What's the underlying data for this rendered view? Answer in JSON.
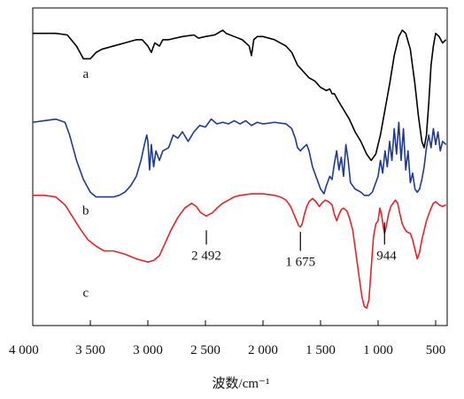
{
  "chart_data": {
    "type": "line",
    "title": "",
    "xlabel": "波数/cm⁻¹",
    "ylabel": "",
    "x_reversed": true,
    "xlim": [
      4000,
      400
    ],
    "x_ticks": [
      4000,
      3500,
      3000,
      2500,
      2000,
      1500,
      1000,
      500
    ],
    "x_tick_labels": [
      "4 000",
      "3 500",
      "3 000",
      "2 500",
      "2 000",
      "1 500",
      "1 000",
      "500"
    ],
    "ylim": [
      0,
      100
    ],
    "y_ticks_shown": false,
    "grid": false,
    "series": [
      {
        "name": "a",
        "color": "#000000",
        "points": [
          [
            4000,
            92
          ],
          [
            3800,
            92
          ],
          [
            3700,
            91.5
          ],
          [
            3620,
            88
          ],
          [
            3560,
            84
          ],
          [
            3500,
            84
          ],
          [
            3450,
            86
          ],
          [
            3400,
            87
          ],
          [
            3300,
            88
          ],
          [
            3200,
            89
          ],
          [
            3100,
            90
          ],
          [
            3050,
            90
          ],
          [
            3000,
            88
          ],
          [
            2970,
            86
          ],
          [
            2940,
            89
          ],
          [
            2900,
            88
          ],
          [
            2870,
            90
          ],
          [
            2820,
            90
          ],
          [
            2700,
            91
          ],
          [
            2600,
            91.5
          ],
          [
            2560,
            90.5
          ],
          [
            2500,
            91
          ],
          [
            2420,
            91.5
          ],
          [
            2350,
            93
          ],
          [
            2320,
            92
          ],
          [
            2250,
            91
          ],
          [
            2180,
            90
          ],
          [
            2120,
            88
          ],
          [
            2100,
            85
          ],
          [
            2080,
            90
          ],
          [
            2050,
            91
          ],
          [
            2000,
            91
          ],
          [
            1900,
            90
          ],
          [
            1800,
            88
          ],
          [
            1750,
            86
          ],
          [
            1700,
            82
          ],
          [
            1650,
            80
          ],
          [
            1600,
            78
          ],
          [
            1550,
            77
          ],
          [
            1500,
            75
          ],
          [
            1450,
            74
          ],
          [
            1420,
            74.5
          ],
          [
            1400,
            73
          ],
          [
            1380,
            73
          ],
          [
            1350,
            71
          ],
          [
            1300,
            68
          ],
          [
            1250,
            65
          ],
          [
            1200,
            61
          ],
          [
            1150,
            58
          ],
          [
            1100,
            54
          ],
          [
            1060,
            52
          ],
          [
            1020,
            54
          ],
          [
            980,
            60
          ],
          [
            940,
            68
          ],
          [
            900,
            76
          ],
          [
            860,
            85
          ],
          [
            820,
            91
          ],
          [
            790,
            93
          ],
          [
            760,
            92
          ],
          [
            720,
            87
          ],
          [
            680,
            76
          ],
          [
            650,
            66
          ],
          [
            620,
            58
          ],
          [
            600,
            56
          ],
          [
            580,
            60
          ],
          [
            560,
            70
          ],
          [
            540,
            82
          ],
          [
            520,
            88
          ],
          [
            500,
            92
          ],
          [
            470,
            91
          ],
          [
            440,
            89
          ],
          [
            410,
            90
          ]
        ]
      },
      {
        "name": "b",
        "color": "#1f3a93",
        "points": [
          [
            4000,
            64
          ],
          [
            3900,
            64.5
          ],
          [
            3800,
            65
          ],
          [
            3720,
            64
          ],
          [
            3680,
            60
          ],
          [
            3620,
            52
          ],
          [
            3560,
            46
          ],
          [
            3500,
            42
          ],
          [
            3450,
            40.5
          ],
          [
            3400,
            40.5
          ],
          [
            3300,
            40.5
          ],
          [
            3250,
            41
          ],
          [
            3200,
            42
          ],
          [
            3150,
            44
          ],
          [
            3100,
            47
          ],
          [
            3060,
            52
          ],
          [
            3030,
            57
          ],
          [
            3010,
            60
          ],
          [
            3000,
            58
          ],
          [
            2985,
            49
          ],
          [
            2970,
            57
          ],
          [
            2950,
            50
          ],
          [
            2930,
            55
          ],
          [
            2900,
            52
          ],
          [
            2870,
            55
          ],
          [
            2820,
            56
          ],
          [
            2780,
            60
          ],
          [
            2740,
            59
          ],
          [
            2700,
            61
          ],
          [
            2650,
            58
          ],
          [
            2600,
            61
          ],
          [
            2550,
            63
          ],
          [
            2500,
            62.5
          ],
          [
            2450,
            65
          ],
          [
            2400,
            63.5
          ],
          [
            2350,
            64
          ],
          [
            2300,
            63.5
          ],
          [
            2250,
            64.5
          ],
          [
            2200,
            63.5
          ],
          [
            2150,
            64.5
          ],
          [
            2100,
            63
          ],
          [
            2050,
            64
          ],
          [
            2000,
            63.5
          ],
          [
            1900,
            64
          ],
          [
            1800,
            63.5
          ],
          [
            1750,
            62
          ],
          [
            1720,
            59
          ],
          [
            1700,
            56
          ],
          [
            1675,
            55
          ],
          [
            1650,
            56
          ],
          [
            1620,
            57
          ],
          [
            1600,
            55
          ],
          [
            1570,
            50
          ],
          [
            1540,
            47
          ],
          [
            1500,
            43
          ],
          [
            1470,
            41.5
          ],
          [
            1450,
            44
          ],
          [
            1420,
            47
          ],
          [
            1400,
            46
          ],
          [
            1380,
            51
          ],
          [
            1360,
            55
          ],
          [
            1340,
            49
          ],
          [
            1320,
            53
          ],
          [
            1300,
            47
          ],
          [
            1280,
            57
          ],
          [
            1260,
            52
          ],
          [
            1240,
            45
          ],
          [
            1200,
            43
          ],
          [
            1150,
            42
          ],
          [
            1120,
            41
          ],
          [
            1080,
            41
          ],
          [
            1050,
            42
          ],
          [
            1030,
            44
          ],
          [
            1000,
            47
          ],
          [
            980,
            52
          ],
          [
            960,
            48
          ],
          [
            940,
            55
          ],
          [
            920,
            50
          ],
          [
            900,
            58
          ],
          [
            880,
            52
          ],
          [
            860,
            62
          ],
          [
            840,
            54
          ],
          [
            820,
            64
          ],
          [
            800,
            52
          ],
          [
            780,
            62
          ],
          [
            760,
            49
          ],
          [
            740,
            55
          ],
          [
            720,
            45
          ],
          [
            700,
            48
          ],
          [
            680,
            43
          ],
          [
            660,
            42
          ],
          [
            640,
            43
          ],
          [
            620,
            46
          ],
          [
            600,
            50
          ],
          [
            580,
            56
          ],
          [
            560,
            60
          ],
          [
            540,
            56
          ],
          [
            520,
            62
          ],
          [
            500,
            57
          ],
          [
            480,
            61
          ],
          [
            460,
            55
          ],
          [
            440,
            58
          ],
          [
            410,
            57
          ]
        ]
      },
      {
        "name": "c",
        "color": "#e1252b",
        "points": [
          [
            4000,
            41
          ],
          [
            3900,
            41
          ],
          [
            3800,
            40.5
          ],
          [
            3720,
            38
          ],
          [
            3650,
            34
          ],
          [
            3580,
            30
          ],
          [
            3520,
            27
          ],
          [
            3450,
            25
          ],
          [
            3380,
            23.5
          ],
          [
            3300,
            23.5
          ],
          [
            3200,
            22.5
          ],
          [
            3100,
            21
          ],
          [
            3000,
            20
          ],
          [
            2950,
            20.5
          ],
          [
            2900,
            22
          ],
          [
            2850,
            26
          ],
          [
            2800,
            30
          ],
          [
            2740,
            34
          ],
          [
            2680,
            37
          ],
          [
            2620,
            38.5
          ],
          [
            2580,
            37.5
          ],
          [
            2540,
            35.5
          ],
          [
            2492,
            34.5
          ],
          [
            2440,
            35.5
          ],
          [
            2400,
            37
          ],
          [
            2350,
            38.5
          ],
          [
            2300,
            39.5
          ],
          [
            2250,
            40.5
          ],
          [
            2200,
            41
          ],
          [
            2100,
            41.5
          ],
          [
            2000,
            41.5
          ],
          [
            1900,
            41
          ],
          [
            1850,
            40.5
          ],
          [
            1800,
            39.5
          ],
          [
            1760,
            37.5
          ],
          [
            1720,
            34
          ],
          [
            1690,
            31.5
          ],
          [
            1675,
            31
          ],
          [
            1660,
            32
          ],
          [
            1640,
            35
          ],
          [
            1620,
            37.5
          ],
          [
            1600,
            39
          ],
          [
            1570,
            40
          ],
          [
            1540,
            39
          ],
          [
            1510,
            37.5
          ],
          [
            1490,
            38.5
          ],
          [
            1460,
            39.5
          ],
          [
            1430,
            39
          ],
          [
            1400,
            38
          ],
          [
            1380,
            35
          ],
          [
            1360,
            33
          ],
          [
            1340,
            35
          ],
          [
            1320,
            36.5
          ],
          [
            1300,
            37
          ],
          [
            1270,
            36
          ],
          [
            1250,
            34
          ],
          [
            1220,
            30
          ],
          [
            1190,
            22
          ],
          [
            1160,
            14
          ],
          [
            1140,
            9
          ],
          [
            1120,
            6
          ],
          [
            1100,
            5.5
          ],
          [
            1080,
            8
          ],
          [
            1060,
            18
          ],
          [
            1040,
            28
          ],
          [
            1020,
            32
          ],
          [
            1000,
            33
          ],
          [
            985,
            37
          ],
          [
            970,
            35
          ],
          [
            955,
            31
          ],
          [
            944,
            29
          ],
          [
            930,
            31
          ],
          [
            910,
            35
          ],
          [
            890,
            37.5
          ],
          [
            870,
            38.5
          ],
          [
            850,
            39.5
          ],
          [
            830,
            38.5
          ],
          [
            810,
            35
          ],
          [
            790,
            32
          ],
          [
            770,
            30.5
          ],
          [
            750,
            29.5
          ],
          [
            720,
            29
          ],
          [
            700,
            27
          ],
          [
            680,
            24
          ],
          [
            660,
            21
          ],
          [
            640,
            23
          ],
          [
            620,
            27
          ],
          [
            600,
            30
          ],
          [
            580,
            33
          ],
          [
            560,
            35
          ],
          [
            540,
            37
          ],
          [
            520,
            38.5
          ],
          [
            500,
            39
          ],
          [
            470,
            38
          ],
          [
            440,
            37.5
          ],
          [
            410,
            38
          ]
        ]
      }
    ],
    "curve_labels": [
      {
        "text": "a",
        "x": 3540,
        "y": 78
      },
      {
        "text": "b",
        "x": 3540,
        "y": 35
      },
      {
        "text": "c",
        "x": 3540,
        "y": 9
      }
    ],
    "annotations": [
      {
        "text": "2 492",
        "x": 2492,
        "y_tip": 34.5,
        "y_top": 30,
        "y_bottom": 25.5,
        "align": "center"
      },
      {
        "text": "1 675",
        "x": 1675,
        "y_tip": 31,
        "y_top": 29.5,
        "y_bottom": 23.5,
        "align": "center"
      },
      {
        "text": "944",
        "x": 944,
        "y_tip": 29,
        "y_top": 32.5,
        "y_bottom": 25.5,
        "align": "start"
      }
    ]
  }
}
